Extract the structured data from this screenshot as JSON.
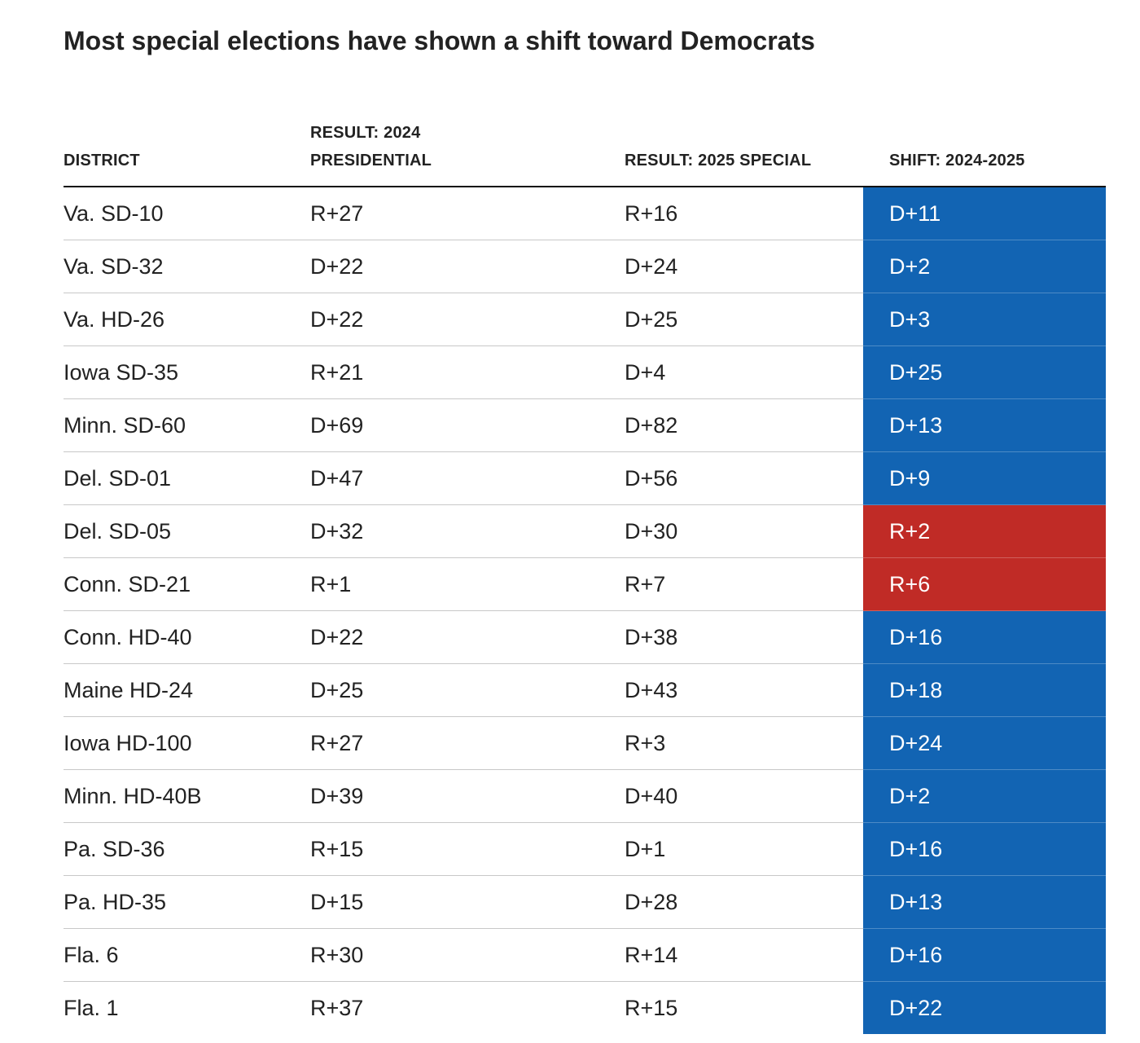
{
  "title": "Most special elections have shown a shift toward Democrats",
  "colors": {
    "dem_shift": "#1264b3",
    "rep_shift": "#c02b26"
  },
  "chart_data": {
    "type": "table",
    "title": "Most special elections have shown a shift toward Democrats",
    "columns": [
      {
        "line1": "DISTRICT",
        "line2": ""
      },
      {
        "line1": "RESULT: 2024",
        "line2": "PRESIDENTIAL"
      },
      {
        "line1": "RESULT: 2025 SPECIAL",
        "line2": ""
      },
      {
        "line1": "SHIFT: 2024-2025",
        "line2": ""
      }
    ],
    "rows": [
      {
        "district": "Va. SD-10",
        "pres_2024": "R+27",
        "special_2025": "R+16",
        "shift": "D+11",
        "party": "D"
      },
      {
        "district": "Va. SD-32",
        "pres_2024": "D+22",
        "special_2025": "D+24",
        "shift": "D+2",
        "party": "D"
      },
      {
        "district": "Va. HD-26",
        "pres_2024": "D+22",
        "special_2025": "D+25",
        "shift": "D+3",
        "party": "D"
      },
      {
        "district": "Iowa SD-35",
        "pres_2024": "R+21",
        "special_2025": "D+4",
        "shift": "D+25",
        "party": "D"
      },
      {
        "district": "Minn. SD-60",
        "pres_2024": "D+69",
        "special_2025": "D+82",
        "shift": "D+13",
        "party": "D"
      },
      {
        "district": "Del. SD-01",
        "pres_2024": "D+47",
        "special_2025": "D+56",
        "shift": "D+9",
        "party": "D"
      },
      {
        "district": "Del. SD-05",
        "pres_2024": "D+32",
        "special_2025": "D+30",
        "shift": "R+2",
        "party": "R"
      },
      {
        "district": "Conn. SD-21",
        "pres_2024": "R+1",
        "special_2025": "R+7",
        "shift": "R+6",
        "party": "R"
      },
      {
        "district": "Conn. HD-40",
        "pres_2024": "D+22",
        "special_2025": "D+38",
        "shift": "D+16",
        "party": "D"
      },
      {
        "district": "Maine HD-24",
        "pres_2024": "D+25",
        "special_2025": "D+43",
        "shift": "D+18",
        "party": "D"
      },
      {
        "district": "Iowa HD-100",
        "pres_2024": "R+27",
        "special_2025": "R+3",
        "shift": "D+24",
        "party": "D"
      },
      {
        "district": "Minn. HD-40B",
        "pres_2024": "D+39",
        "special_2025": "D+40",
        "shift": "D+2",
        "party": "D"
      },
      {
        "district": "Pa. SD-36",
        "pres_2024": "R+15",
        "special_2025": "D+1",
        "shift": "D+16",
        "party": "D"
      },
      {
        "district": "Pa. HD-35",
        "pres_2024": "D+15",
        "special_2025": "D+28",
        "shift": "D+13",
        "party": "D"
      },
      {
        "district": "Fla. 6",
        "pres_2024": "R+30",
        "special_2025": "R+14",
        "shift": "D+16",
        "party": "D"
      },
      {
        "district": "Fla. 1",
        "pres_2024": "R+37",
        "special_2025": "R+15",
        "shift": "D+22",
        "party": "D"
      }
    ]
  }
}
